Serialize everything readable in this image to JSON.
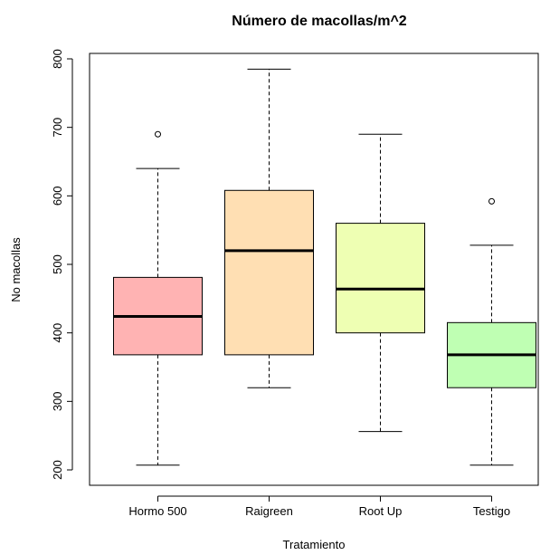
{
  "chart_data": {
    "type": "boxplot",
    "title": "Número de macollas/m^2",
    "xlabel": "Tratamiento",
    "ylabel": "No macollas",
    "ylim": [
      190,
      810
    ],
    "yticks": [
      "200",
      "300",
      "400",
      "500",
      "600",
      "700",
      "800"
    ],
    "categories": [
      "Hormo 500",
      "Raigreen",
      "Root Up",
      "Testigo"
    ],
    "boxes": [
      {
        "category": "Hormo 500",
        "whisker_low": 207,
        "q1": 368,
        "median": 424,
        "q3": 481,
        "whisker_high": 640,
        "outliers": [
          690
        ],
        "color": "#FFB3B3"
      },
      {
        "category": "Raigreen",
        "whisker_low": 320,
        "q1": 368,
        "median": 520,
        "q3": 608,
        "whisker_high": 785,
        "outliers": [],
        "color": "#FFDFB3"
      },
      {
        "category": "Root Up",
        "whisker_low": 256,
        "q1": 400,
        "median": 464,
        "q3": 560,
        "whisker_high": 690,
        "outliers": [],
        "color": "#EEFFB3"
      },
      {
        "category": "Testigo",
        "whisker_low": 207,
        "q1": 320,
        "median": 368,
        "q3": 415,
        "whisker_high": 528,
        "outliers": [
          592
        ],
        "color": "#BFFFB3"
      }
    ],
    "grid": false,
    "legend": "none"
  }
}
